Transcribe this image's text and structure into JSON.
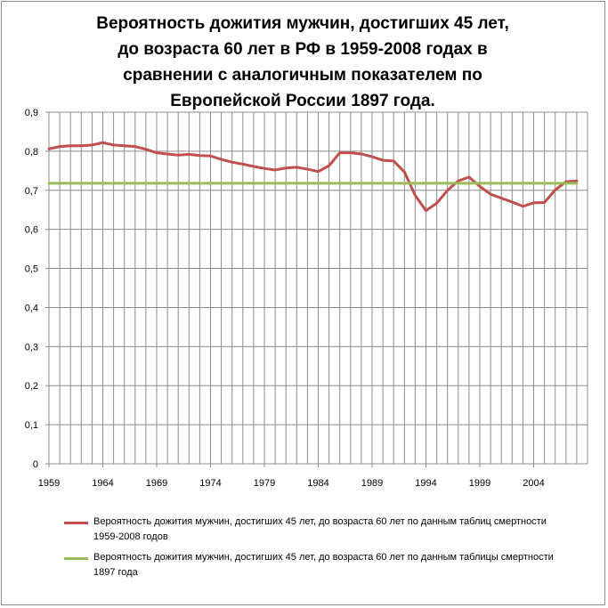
{
  "title_lines": [
    "Вероятность дожития мужчин, достигших 45 лет,",
    "до возраста 60 лет в РФ в 1959-2008 годах в",
    "сравнении с аналогичным показателем по",
    "Европейской России 1897 года."
  ],
  "chart_data": {
    "type": "line",
    "title": "Вероятность дожития мужчин, достигших 45 лет, до возраста 60 лет в РФ в 1959-2008 годах в сравнении с аналогичным показателем по Европейской России 1897 года.",
    "x": [
      1959,
      1960,
      1961,
      1962,
      1963,
      1964,
      1965,
      1966,
      1967,
      1968,
      1969,
      1970,
      1971,
      1972,
      1973,
      1974,
      1975,
      1976,
      1977,
      1978,
      1979,
      1980,
      1981,
      1982,
      1983,
      1984,
      1985,
      1986,
      1987,
      1988,
      1989,
      1990,
      1991,
      1992,
      1993,
      1994,
      1995,
      1996,
      1997,
      1998,
      1999,
      2000,
      2001,
      2002,
      2003,
      2004,
      2005,
      2006,
      2007,
      2008
    ],
    "series": [
      {
        "name": "Вероятность дожития мужчин, достигших 45 лет, до возраста 60 лет по данным таблиц смертности 1959-2008 годов",
        "color": "#c0504d",
        "values": [
          0.806,
          0.812,
          0.814,
          0.814,
          0.816,
          0.822,
          0.816,
          0.814,
          0.812,
          0.805,
          0.796,
          0.793,
          0.79,
          0.792,
          0.789,
          0.788,
          0.779,
          0.772,
          0.767,
          0.761,
          0.756,
          0.752,
          0.757,
          0.759,
          0.754,
          0.748,
          0.763,
          0.796,
          0.796,
          0.793,
          0.786,
          0.777,
          0.775,
          0.747,
          0.687,
          0.648,
          0.667,
          0.7,
          0.724,
          0.734,
          0.71,
          0.69,
          0.68,
          0.67,
          0.659,
          0.668,
          0.669,
          0.701,
          0.722,
          0.724
        ]
      },
      {
        "name": "Вероятность дожития мужчин, достигших 45 лет, до возраста 60 лет по данным таблицы смертности 1897 года",
        "color": "#9bbb59",
        "values": [
          0.718,
          0.718,
          0.718,
          0.718,
          0.718,
          0.718,
          0.718,
          0.718,
          0.718,
          0.718,
          0.718,
          0.718,
          0.718,
          0.718,
          0.718,
          0.718,
          0.718,
          0.718,
          0.718,
          0.718,
          0.718,
          0.718,
          0.718,
          0.718,
          0.718,
          0.718,
          0.718,
          0.718,
          0.718,
          0.718,
          0.718,
          0.718,
          0.718,
          0.718,
          0.718,
          0.718,
          0.718,
          0.718,
          0.718,
          0.718,
          0.718,
          0.718,
          0.718,
          0.718,
          0.718,
          0.718,
          0.718,
          0.718,
          0.718,
          0.718
        ]
      }
    ],
    "xticks": [
      "1959",
      "1964",
      "1969",
      "1974",
      "1979",
      "1984",
      "1989",
      "1994",
      "1999",
      "2004"
    ],
    "yticks": [
      "0",
      "0,1",
      "0,2",
      "0,3",
      "0,4",
      "0,5",
      "0,6",
      "0,7",
      "0,8",
      "0,9"
    ],
    "ylim": [
      0,
      0.9
    ],
    "xlim": [
      1959,
      2008
    ],
    "grid": true,
    "legend": "bottom"
  },
  "legend": {
    "items": [
      {
        "label": "Вероятность дожития мужчин, достигших 45 лет, до возраста 60 лет по данным таблиц смертности 1959-2008 годов",
        "color": "#c0504d"
      },
      {
        "label": "Вероятность дожития мужчин, достигших 45 лет, до возраста 60 лет по данным таблицы смертности 1897 года",
        "color": "#9bbb59"
      }
    ]
  }
}
